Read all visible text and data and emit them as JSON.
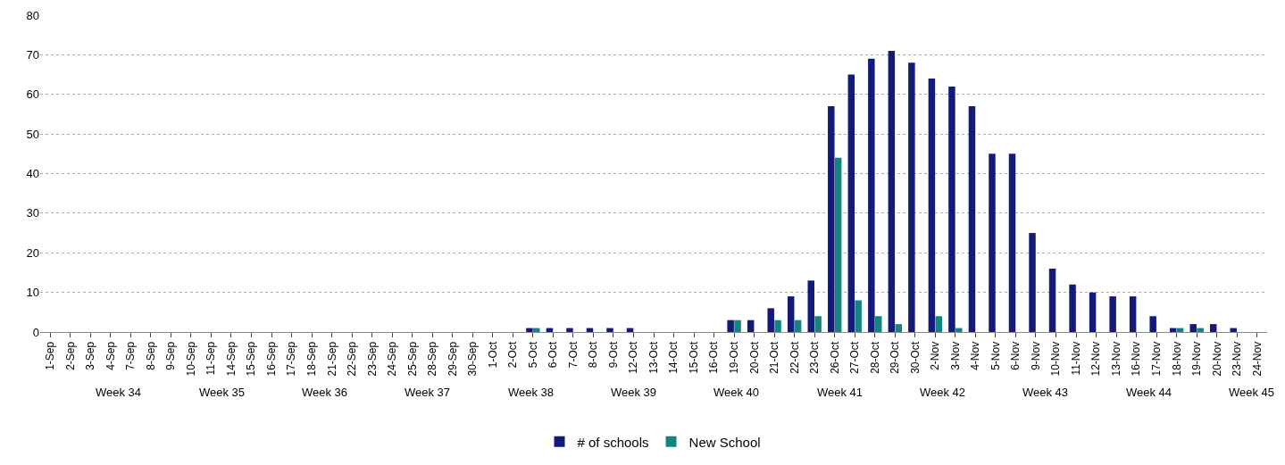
{
  "chart_data": {
    "type": "bar",
    "categories": [
      "1-Sep",
      "2-Sep",
      "3-Sep",
      "4-Sep",
      "7-Sep",
      "8-Sep",
      "9-Sep",
      "10-Sep",
      "11-Sep",
      "14-Sep",
      "15-Sep",
      "16-Sep",
      "17-Sep",
      "18-Sep",
      "21-Sep",
      "22-Sep",
      "23-Sep",
      "24-Sep",
      "25-Sep",
      "28-Sep",
      "29-Sep",
      "30-Sep",
      "1-Oct",
      "2-Oct",
      "5-Oct",
      "6-Oct",
      "7-Oct",
      "8-Oct",
      "9-Oct",
      "12-Oct",
      "13-Oct",
      "14-Oct",
      "15-Oct",
      "16-Oct",
      "19-Oct",
      "20-Oct",
      "21-Oct",
      "22-Oct",
      "23-Oct",
      "26-Oct",
      "27-Oct",
      "28-Oct",
      "29-Oct",
      "30-Oct",
      "2-Nov",
      "3-Nov",
      "4-Nov",
      "5-Nov",
      "6-Nov",
      "9-Nov",
      "10-Nov",
      "11-Nov",
      "12-Nov",
      "13-Nov",
      "16-Nov",
      "17-Nov",
      "18-Nov",
      "19-Nov",
      "20-Nov",
      "23-Nov",
      "24-Nov"
    ],
    "series": [
      {
        "name": "# of schools",
        "color": "#141a7a",
        "values": [
          0,
          0,
          0,
          0,
          0,
          0,
          0,
          0,
          0,
          0,
          0,
          0,
          0,
          0,
          0,
          0,
          0,
          0,
          0,
          0,
          0,
          0,
          0,
          0,
          1,
          1,
          1,
          1,
          1,
          1,
          0,
          0,
          0,
          0,
          3,
          3,
          6,
          9,
          13,
          57,
          65,
          69,
          71,
          68,
          64,
          62,
          57,
          45,
          45,
          25,
          16,
          12,
          10,
          9,
          9,
          4,
          1,
          2,
          2,
          1,
          0
        ]
      },
      {
        "name": "New School",
        "color": "#138580",
        "values": [
          0,
          0,
          0,
          0,
          0,
          0,
          0,
          0,
          0,
          0,
          0,
          0,
          0,
          0,
          0,
          0,
          0,
          0,
          0,
          0,
          0,
          0,
          0,
          0,
          1,
          0,
          0,
          0,
          0,
          0,
          0,
          0,
          0,
          0,
          3,
          0,
          3,
          3,
          4,
          44,
          8,
          4,
          2,
          0,
          4,
          1,
          0,
          0,
          0,
          0,
          0,
          0,
          0,
          0,
          0,
          0,
          1,
          1,
          0,
          0,
          0
        ]
      }
    ],
    "annotations": [
      "Week 34",
      "Week 35",
      "Week 36",
      "Week 37",
      "Week 38",
      "Week 39",
      "Week 40",
      "Week 41",
      "Week 42",
      "Week 43",
      "Week 44",
      "Week 45"
    ],
    "ylim": [
      0,
      80
    ],
    "yticks": [
      0,
      10,
      20,
      30,
      40,
      50,
      60,
      70,
      80
    ],
    "grid": "y",
    "legend": "bottom"
  }
}
